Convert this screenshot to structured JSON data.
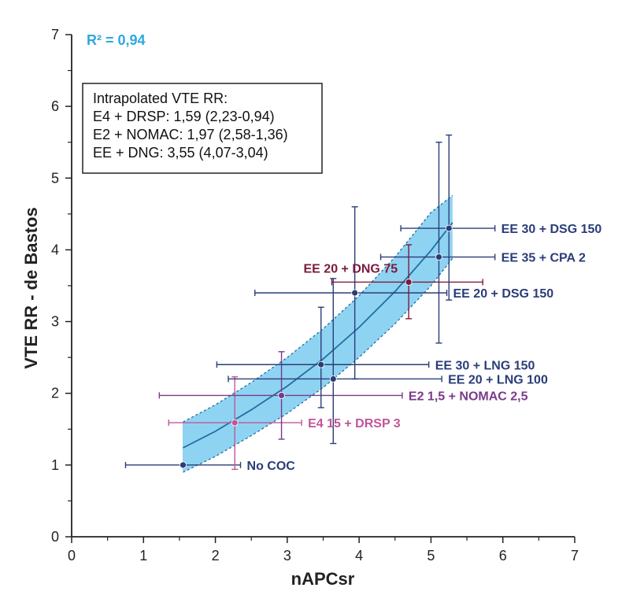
{
  "colors": {
    "navy": "#2a3d78",
    "maroon": "#7a1a3c",
    "purple": "#7a3a8a",
    "pink": "#c0569a",
    "band_fill": "#8fd3f2",
    "band_edge": "#1f6fa0",
    "curve": "#1f6fa0",
    "r2": "#2ea7df"
  },
  "chart_data": {
    "type": "scatter",
    "title": "",
    "xlabel": "nAPCsr",
    "ylabel": "VTE RR - de Bastos",
    "xlim": [
      0,
      7
    ],
    "ylim": [
      0,
      7
    ],
    "x_ticks": [
      "0",
      "1",
      "2",
      "3",
      "4",
      "5",
      "6",
      "7"
    ],
    "y_ticks": [
      "0",
      "1",
      "2",
      "3",
      "4",
      "5",
      "6",
      "7"
    ],
    "grid": false,
    "r2_label": "R² = 0,94",
    "info_box": {
      "title": "Intrapolated VTE RR:",
      "lines": [
        "E4 + DRSP: 1,59 (2,23-0,94)",
        "E2 + NOMAC: 1,97 (2,58-1,36)",
        "EE + DNG: 3,55 (4,07-3,04)"
      ]
    },
    "points": [
      {
        "label": "No COC",
        "x": 1.55,
        "y": 1.0,
        "xerr": [
          0.75,
          2.35
        ],
        "yerr": [
          1.0,
          1.0
        ],
        "color": "navy",
        "label_pos": "right"
      },
      {
        "label": "E4 15 + DRSP 3",
        "x": 2.27,
        "y": 1.59,
        "xerr": [
          1.35,
          3.2
        ],
        "yerr": [
          0.94,
          2.23
        ],
        "color": "pink",
        "label_pos": "right"
      },
      {
        "label": "E2 1,5 + NOMAC 2,5",
        "x": 2.92,
        "y": 1.97,
        "xerr": [
          1.22,
          4.6
        ],
        "yerr": [
          1.36,
          2.58
        ],
        "color": "purple",
        "label_pos": "right"
      },
      {
        "label": "EE 30 + LNG 150",
        "x": 3.47,
        "y": 2.4,
        "xerr": [
          2.02,
          4.97
        ],
        "yerr": [
          1.8,
          3.2
        ],
        "color": "navy",
        "label_pos": "right"
      },
      {
        "label": "EE 20 + LNG 100",
        "x": 3.64,
        "y": 2.2,
        "xerr": [
          2.18,
          5.15
        ],
        "yerr": [
          1.3,
          3.6
        ],
        "color": "navy",
        "label_pos": "right"
      },
      {
        "label": "EE 20 + DSG 150",
        "x": 3.94,
        "y": 3.4,
        "xerr": [
          2.55,
          5.22
        ],
        "yerr": [
          2.2,
          4.6
        ],
        "color": "navy",
        "label_pos": "right"
      },
      {
        "label": "EE 20 + DNG 75",
        "x": 4.69,
        "y": 3.55,
        "xerr": [
          3.62,
          5.72
        ],
        "yerr": [
          3.04,
          4.07
        ],
        "color": "maroon",
        "label_pos": "upper-left"
      },
      {
        "label": "EE 35 + CPA 2",
        "x": 5.11,
        "y": 3.9,
        "xerr": [
          4.3,
          5.89
        ],
        "yerr": [
          2.7,
          5.5
        ],
        "color": "navy",
        "label_pos": "right"
      },
      {
        "label": "EE 30 + DSG 150",
        "x": 5.25,
        "y": 4.3,
        "xerr": [
          4.58,
          5.89
        ],
        "yerr": [
          3.3,
          5.6
        ],
        "color": "navy",
        "label_pos": "right"
      }
    ],
    "fit_curve": {
      "x": [
        1.55,
        2.0,
        2.5,
        3.0,
        3.5,
        4.0,
        4.5,
        5.0,
        5.3
      ],
      "y": [
        1.24,
        1.47,
        1.77,
        2.1,
        2.48,
        2.92,
        3.42,
        3.99,
        4.38
      ],
      "upper": [
        1.6,
        1.84,
        2.15,
        2.5,
        2.9,
        3.36,
        3.9,
        4.52,
        4.76
      ],
      "lower": [
        0.9,
        1.12,
        1.41,
        1.72,
        2.08,
        2.5,
        2.97,
        3.5,
        3.88
      ]
    }
  }
}
